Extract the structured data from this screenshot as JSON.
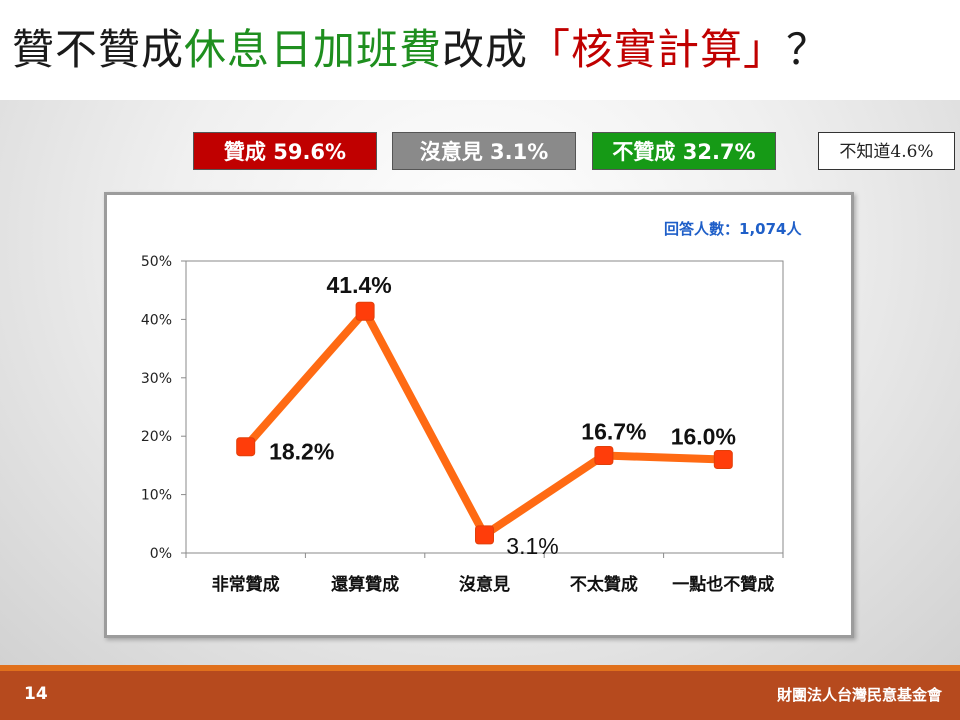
{
  "title": {
    "part1": "贊不贊成",
    "part2": "休息日加班費",
    "part3": "改成",
    "part4": "「核實計算」",
    "part5": "？"
  },
  "summary": {
    "agree": "贊成 59.6%",
    "no_opinion": "沒意見 3.1%",
    "disagree": "不贊成 32.7%",
    "unknown": "不知道4.6%"
  },
  "respondents": "回答人數：1,074人",
  "colors": {
    "agree": "#c00000",
    "no_opinion": "#8a8a8a",
    "disagree": "#169a16",
    "line": "#ff6a13",
    "marker": "#ff3d0a",
    "footer": "#b64a1e"
  },
  "chart_data": {
    "type": "line",
    "categories": [
      "非常贊成",
      "還算贊成",
      "沒意見",
      "不太贊成",
      "一點也不贊成"
    ],
    "values": [
      18.2,
      41.4,
      3.1,
      16.7,
      16.0
    ],
    "data_labels": [
      "18.2%",
      "41.4%",
      "3.1%",
      "16.7%",
      "16.0%"
    ],
    "ylim": [
      0,
      50
    ],
    "yticks": [
      "0%",
      "10%",
      "20%",
      "30%",
      "40%",
      "50%"
    ],
    "grid": false,
    "xlabel": "",
    "ylabel": ""
  },
  "footer": {
    "page": "14",
    "org": "財團法人台灣民意基金會"
  }
}
